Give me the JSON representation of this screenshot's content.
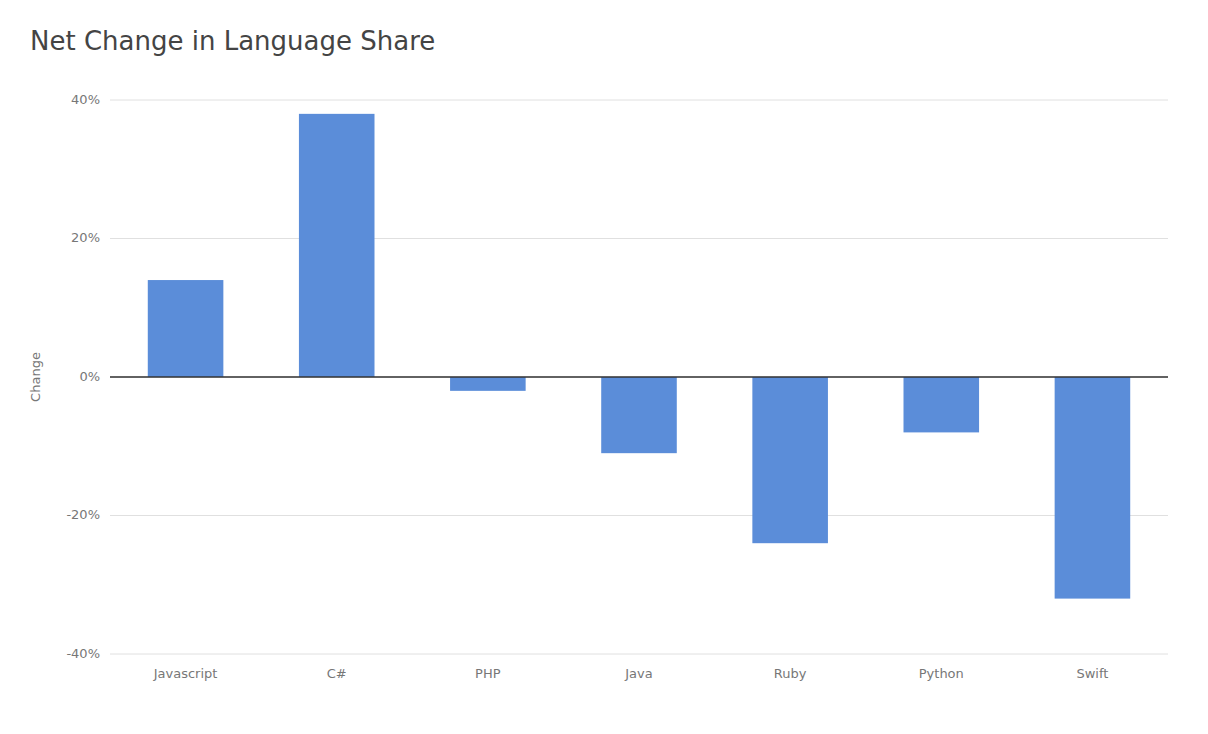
{
  "chart_data": {
    "type": "bar",
    "title": "Net Change in Language Share",
    "ylabel": "Change",
    "categories": [
      "Javascript",
      "C#",
      "PHP",
      "Java",
      "Ruby",
      "Python",
      "Swift"
    ],
    "values": [
      14,
      38,
      -2,
      -11,
      -24,
      -8,
      -32
    ],
    "color": "#5b8dd9",
    "ylim": [
      -40,
      40
    ],
    "yticks": [
      {
        "value": -40,
        "label": "-40%"
      },
      {
        "value": -20,
        "label": "-20%"
      },
      {
        "value": 0,
        "label": "0%"
      },
      {
        "value": 20,
        "label": "20%"
      },
      {
        "value": 40,
        "label": "40%"
      }
    ],
    "grid": true
  }
}
